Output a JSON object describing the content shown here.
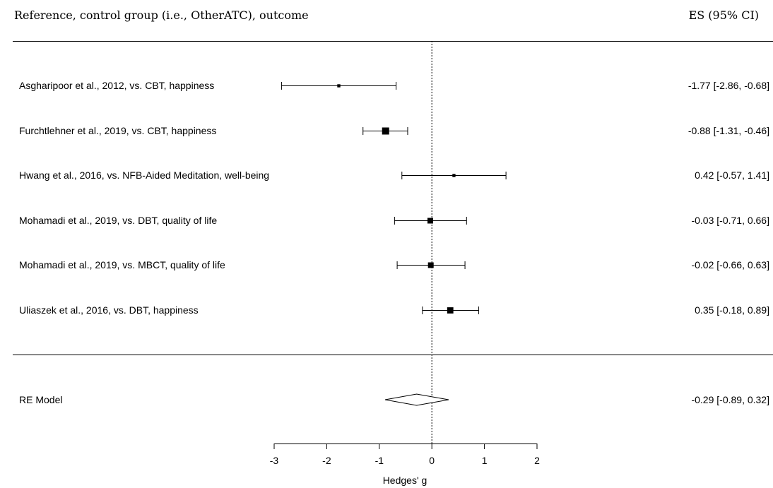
{
  "chart_data": {
    "type": "forest",
    "header_left": "Reference, control group (i.e., OtherATC), outcome",
    "header_right": "ES (95% CI)",
    "xlabel": "Hedges' g",
    "xlim": [
      -3,
      2
    ],
    "xticks": [
      -3,
      -2,
      -1,
      0,
      1,
      2
    ],
    "xtick_labels": [
      "-3",
      "-2",
      "-1",
      "0",
      "1",
      "2"
    ],
    "studies": [
      {
        "label": "Asgharipoor et al., 2012, vs. CBT, happiness",
        "es": -1.77,
        "lo": -2.86,
        "hi": -0.68,
        "ci_text": "-1.77 [-2.86, -0.68]",
        "weight": 0.3
      },
      {
        "label": "Furchtlehner et al., 2019, vs. CBT, happiness",
        "es": -0.88,
        "lo": -1.31,
        "hi": -0.46,
        "ci_text": "-0.88 [-1.31, -0.46]",
        "weight": 1.0
      },
      {
        "label": "Hwang et al., 2016, vs. NFB-Aided Meditation, well-being",
        "es": 0.42,
        "lo": -0.57,
        "hi": 1.41,
        "ci_text": "0.42 [-0.57,  1.41]",
        "weight": 0.3
      },
      {
        "label": "Mohamadi et al., 2019, vs. DBT, quality of life",
        "es": -0.03,
        "lo": -0.71,
        "hi": 0.66,
        "ci_text": "-0.03 [-0.71,  0.66]",
        "weight": 0.75
      },
      {
        "label": "Mohamadi et al., 2019, vs. MBCT, quality of life",
        "es": -0.02,
        "lo": -0.66,
        "hi": 0.63,
        "ci_text": "-0.02 [-0.66,  0.63]",
        "weight": 0.75
      },
      {
        "label": "Uliaszek et al., 2016, vs. DBT, happiness",
        "es": 0.35,
        "lo": -0.18,
        "hi": 0.89,
        "ci_text": "0.35 [-0.18,  0.89]",
        "weight": 0.85
      }
    ],
    "summary": {
      "label": "RE Model",
      "es": -0.29,
      "lo": -0.89,
      "hi": 0.32,
      "ci_text": "-0.29 [-0.89,  0.32]"
    }
  }
}
